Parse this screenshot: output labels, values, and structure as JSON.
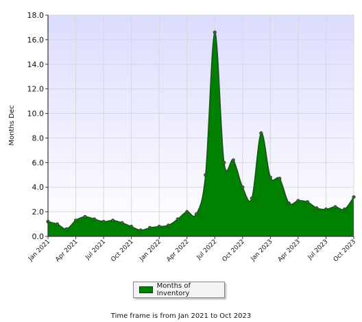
{
  "chart_data": {
    "type": "area",
    "ylabel": "Months Dec",
    "ylim": [
      0,
      18
    ],
    "yticks": [
      "0.0",
      "2.0",
      "4.0",
      "6.0",
      "8.0",
      "10.0",
      "12.0",
      "14.0",
      "16.0",
      "18.0"
    ],
    "xtick_labels": [
      "Jan 2021",
      "Apr 2021",
      "Jul 2021",
      "Oct 2021",
      "Jan 2022",
      "Apr 2022",
      "Jul 2022",
      "Oct 2022",
      "Jan 2023",
      "Apr 2023",
      "Jul 2023",
      "Oct 2023"
    ],
    "grid": true,
    "legend": "bottom-center",
    "colors": {
      "fill": "#008000",
      "line": "#1e4d1e",
      "plot_bg_top": "#dcdcff",
      "plot_bg_bottom": "#ffffff"
    },
    "series": [
      {
        "name": "Months of Inventory",
        "x": [
          "2021-01",
          "2021-02",
          "2021-03",
          "2021-04",
          "2021-05",
          "2021-06",
          "2021-07",
          "2021-08",
          "2021-09",
          "2021-10",
          "2021-11",
          "2021-12",
          "2022-01",
          "2022-02",
          "2022-03",
          "2022-04",
          "2022-05",
          "2022-06",
          "2022-07",
          "2022-08",
          "2022-09",
          "2022-10",
          "2022-11",
          "2022-12",
          "2023-01",
          "2023-02",
          "2023-03",
          "2023-04",
          "2023-05",
          "2023-06",
          "2023-07",
          "2023-08",
          "2023-09",
          "2023-10"
        ],
        "values": [
          1.2,
          1.0,
          0.6,
          1.3,
          1.6,
          1.4,
          1.2,
          1.3,
          1.1,
          0.8,
          0.5,
          0.7,
          0.8,
          0.9,
          1.4,
          2.0,
          1.8,
          5.0,
          16.6,
          6.0,
          6.2,
          4.0,
          3.1,
          8.4,
          4.8,
          4.7,
          2.7,
          2.9,
          2.8,
          2.3,
          2.2,
          2.4,
          2.2,
          3.2
        ]
      }
    ]
  },
  "legend": {
    "label": "Months of Inventory"
  },
  "footer": {
    "text": "Time frame is from Jan 2021 to Oct 2023"
  }
}
